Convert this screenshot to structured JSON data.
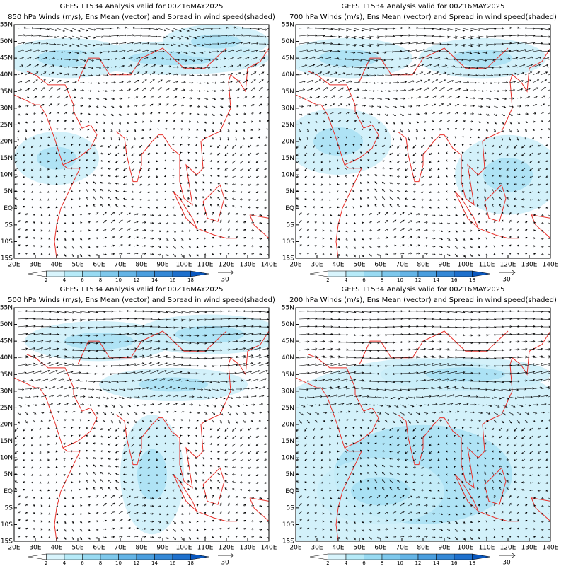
{
  "panels": [
    {
      "title": "GEFS T1534 Analysis valid for 00Z16MAY2025",
      "subtitle": "850 hPa Winds (m/s), Ens Mean (vector) and Spread in wind speed(shaded)"
    },
    {
      "title": "GEFS T1534 Analysis valid for 00Z16MAY2025",
      "subtitle": "700 hPa Winds (m/s), Ens Mean (vector) and Spread in wind speed(shaded)"
    },
    {
      "title": "GEFS T1534 Analysis valid for 00Z16MAY2025",
      "subtitle": "500 hPa Winds (m/s), Ens Mean (vector) and Spread in wind speed(shaded)"
    },
    {
      "title": "GEFS T1534 Analysis valid for 00Z16MAY2025",
      "subtitle": "200 hPa Winds (m/s), Ens Mean (vector) and Spread in wind speed(shaded)"
    }
  ],
  "lat_labels": [
    "55N",
    "50N",
    "45N",
    "40N",
    "35N",
    "30N",
    "25N",
    "20N",
    "15N",
    "10N",
    "5N",
    "EQ",
    "5S",
    "10S",
    "15S"
  ],
  "lon_labels": [
    "20E",
    "30E",
    "40E",
    "50E",
    "60E",
    "70E",
    "80E",
    "90E",
    "100E",
    "110E",
    "120E",
    "130E",
    "140E"
  ],
  "colorbar_ticks": [
    2,
    4,
    6,
    8,
    10,
    12,
    14,
    16,
    18
  ],
  "reference_vector": "30"
}
